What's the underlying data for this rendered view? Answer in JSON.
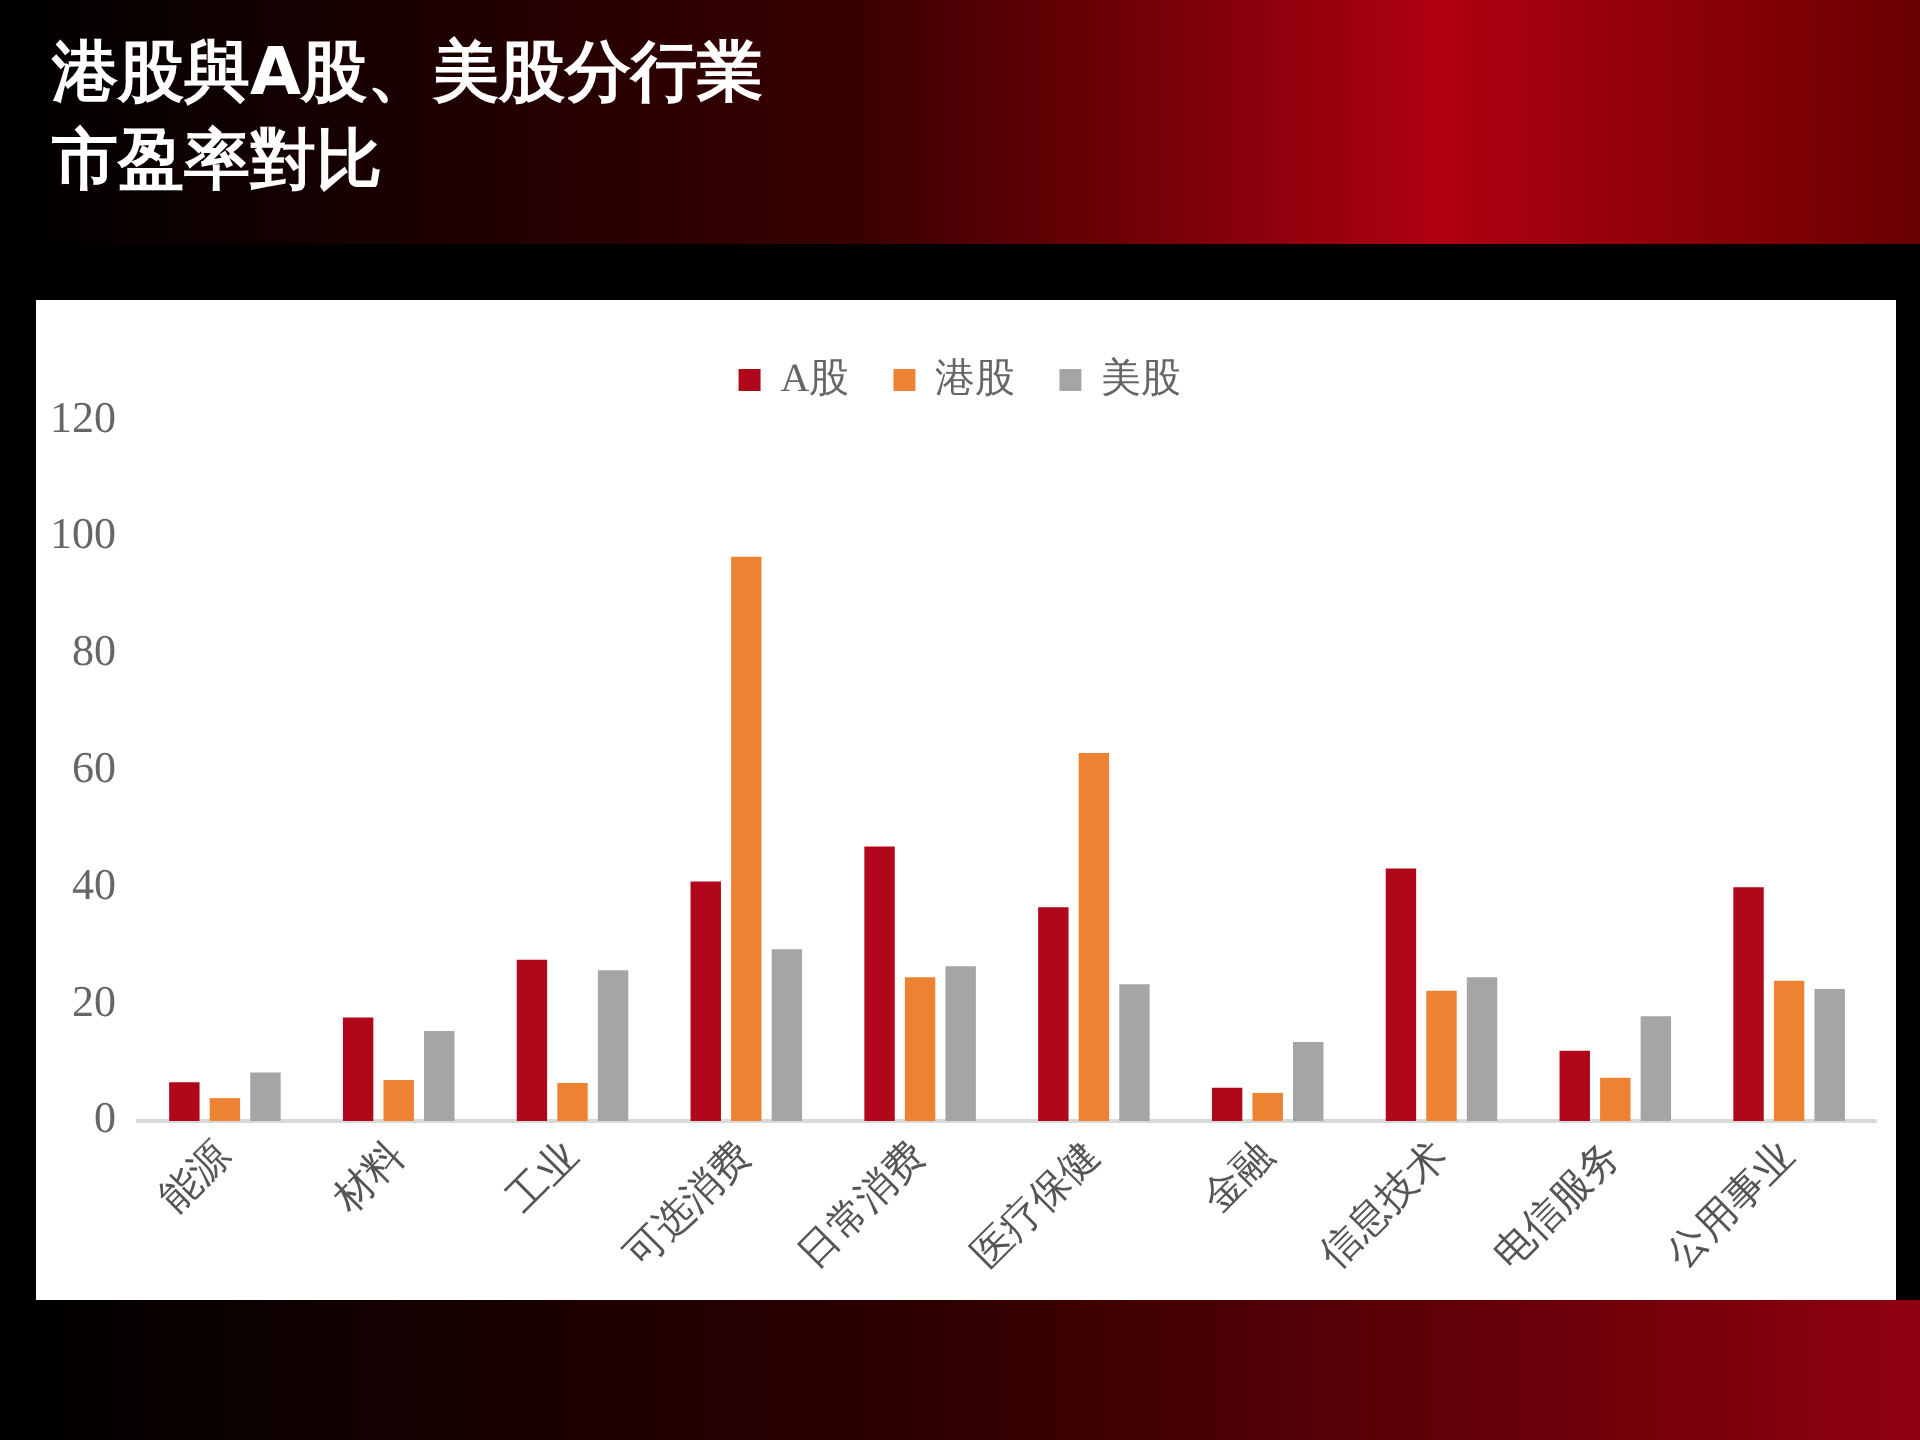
{
  "chart_data": {
    "type": "bar",
    "title": "港股與A股、美股分行業市盈率對比",
    "categories": [
      "能源",
      "材料",
      "工业",
      "可选消费",
      "日常消费",
      "医疗保健",
      "金融",
      "信息技术",
      "电信服务",
      "公用事业"
    ],
    "series": [
      {
        "name": "A股",
        "color": "#b0081a",
        "values": [
          6.6,
          17.7,
          27.6,
          41,
          47,
          36.6,
          5.7,
          43.2,
          12,
          40
        ]
      },
      {
        "name": "港股",
        "color": "#ee8233",
        "values": [
          3.9,
          7,
          6.5,
          96.6,
          24.6,
          63,
          4.8,
          22.3,
          7.4,
          24
        ]
      },
      {
        "name": "美股",
        "color": "#a5a5a5",
        "values": [
          8.3,
          15.4,
          25.8,
          29.4,
          26.5,
          23.4,
          13.5,
          24.6,
          17.9,
          22.6
        ]
      }
    ],
    "ylim": [
      0,
      120
    ],
    "yticks": [
      0,
      20,
      40,
      60,
      80,
      100,
      120
    ],
    "grid": false,
    "legend": "top"
  }
}
